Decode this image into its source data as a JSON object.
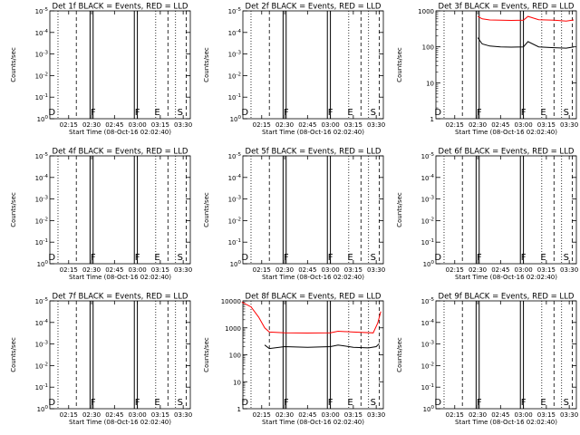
{
  "chart_data": [
    {
      "type": "line",
      "title": "Det 1f BLACK = Events, RED = LLD",
      "xlabel": "Start Time (08-Oct-16 02:02:40)",
      "ylabel": "Counts/sec",
      "x_ticks": [
        "02:15",
        "02:30",
        "02:45",
        "03:00",
        "03:15",
        "03:30"
      ],
      "y_scale": "log",
      "y_ticks": [
        "10^0",
        "10^-1",
        "10^-2",
        "10^-3",
        "10^-4",
        "10^-5"
      ],
      "series": [],
      "markers": [
        "D",
        "F",
        "F",
        "E",
        "S"
      ]
    },
    {
      "type": "line",
      "title": "Det 2f BLACK = Events, RED = LLD",
      "xlabel": "Start Time (08-Oct-16 02:02:40)",
      "ylabel": "Counts/sec",
      "x_ticks": [
        "02:15",
        "02:30",
        "02:45",
        "03:00",
        "03:15",
        "03:30"
      ],
      "y_scale": "log",
      "y_ticks": [
        "10^0",
        "10^-1",
        "10^-2",
        "10^-3",
        "10^-4",
        "10^-5"
      ],
      "series": [],
      "markers": [
        "D",
        "F",
        "F",
        "E",
        "S"
      ]
    },
    {
      "type": "line",
      "title": "Det 3f BLACK = Events, RED = LLD",
      "xlabel": "Start Time (08-Oct-16 02:02:40)",
      "ylabel": "Counts/sec",
      "x_ticks": [
        "02:15",
        "02:30",
        "02:45",
        "03:00",
        "03:15",
        "03:30"
      ],
      "y_scale": "log",
      "ylim": [
        1,
        1000
      ],
      "y_ticks": [
        "1",
        "10",
        "100",
        "1000"
      ],
      "series": [
        {
          "color": "#000000",
          "x": [
            "02:30",
            "02:33",
            "02:38",
            "02:45",
            "02:52",
            "03:00",
            "03:03",
            "03:10",
            "03:20",
            "03:28",
            "03:33"
          ],
          "y": [
            180,
            120,
            105,
            100,
            98,
            100,
            140,
            100,
            95,
            92,
            100
          ]
        },
        {
          "color": "#ff0000",
          "x": [
            "02:30",
            "02:33",
            "02:38",
            "02:45",
            "02:52",
            "03:00",
            "03:03",
            "03:10",
            "03:20",
            "03:28",
            "03:33"
          ],
          "y": [
            700,
            600,
            560,
            550,
            545,
            550,
            700,
            570,
            550,
            520,
            560
          ]
        }
      ],
      "markers": [
        "D",
        "F",
        "F",
        "E",
        "S"
      ]
    },
    {
      "type": "line",
      "title": "Det 4f BLACK = Events, RED = LLD",
      "xlabel": "Start Time (08-Oct-16 02:02:40)",
      "ylabel": "Counts/sec",
      "x_ticks": [
        "02:15",
        "02:30",
        "02:45",
        "03:00",
        "03:15",
        "03:30"
      ],
      "y_scale": "log",
      "y_ticks": [
        "10^0",
        "10^-1",
        "10^-2",
        "10^-3",
        "10^-4",
        "10^-5"
      ],
      "series": [],
      "markers": [
        "D",
        "F",
        "F",
        "E",
        "S"
      ]
    },
    {
      "type": "line",
      "title": "Det 5f BLACK = Events, RED = LLD",
      "xlabel": "Start Time (08-Oct-16 02:02:40)",
      "ylabel": "Counts/sec",
      "x_ticks": [
        "02:15",
        "02:30",
        "02:45",
        "03:00",
        "03:15",
        "03:30"
      ],
      "y_scale": "log",
      "y_ticks": [
        "10^0",
        "10^-1",
        "10^-2",
        "10^-3",
        "10^-4",
        "10^-5"
      ],
      "series": [],
      "markers": [
        "D",
        "F",
        "F",
        "E",
        "S"
      ]
    },
    {
      "type": "line",
      "title": "Det 6f BLACK = Events, RED = LLD",
      "xlabel": "Start Time (08-Oct-16 02:02:40)",
      "ylabel": "Counts/sec",
      "x_ticks": [
        "02:15",
        "02:30",
        "02:45",
        "03:00",
        "03:15",
        "03:30"
      ],
      "y_scale": "log",
      "y_ticks": [
        "10^0",
        "10^-1",
        "10^-2",
        "10^-3",
        "10^-4",
        "10^-5"
      ],
      "series": [],
      "markers": [
        "D",
        "F",
        "F",
        "E",
        "S"
      ]
    },
    {
      "type": "line",
      "title": "Det 7f BLACK = Events, RED = LLD",
      "xlabel": "Start Time (08-Oct-16 02:02:40)",
      "ylabel": "Counts/sec",
      "x_ticks": [
        "02:15",
        "02:30",
        "02:45",
        "03:00",
        "03:15",
        "03:30"
      ],
      "y_scale": "log",
      "y_ticks": [
        "10^0",
        "10^-1",
        "10^-2",
        "10^-3",
        "10^-4",
        "10^-5"
      ],
      "series": [],
      "markers": [
        "D",
        "F",
        "F",
        "E",
        "S"
      ]
    },
    {
      "type": "line",
      "title": "Det 8f BLACK = Events, RED = LLD",
      "xlabel": "Start Time (08-Oct-16 02:02:40)",
      "ylabel": "Counts/sec",
      "x_ticks": [
        "02:15",
        "02:30",
        "02:45",
        "03:00",
        "03:15",
        "03:30"
      ],
      "y_scale": "log",
      "ylim": [
        1,
        10000
      ],
      "y_ticks": [
        "1",
        "10",
        "100",
        "1000",
        "10000"
      ],
      "series": [
        {
          "color": "#000000",
          "x": [
            "02:17",
            "02:20",
            "02:30",
            "02:45",
            "03:00",
            "03:05",
            "03:15",
            "03:25",
            "03:30",
            "03:32"
          ],
          "y": [
            230,
            170,
            200,
            190,
            200,
            230,
            190,
            180,
            200,
            260
          ]
        },
        {
          "color": "#ff0000",
          "x": [
            "02:02",
            "02:08",
            "02:13",
            "02:17",
            "02:20",
            "02:30",
            "02:45",
            "03:00",
            "03:05",
            "03:15",
            "03:28",
            "03:31",
            "03:33"
          ],
          "y": [
            9000,
            6000,
            2500,
            1000,
            700,
            650,
            640,
            650,
            750,
            700,
            650,
            1500,
            4000
          ]
        }
      ],
      "markers": [
        "D",
        "F",
        "F",
        "E",
        "S"
      ]
    },
    {
      "type": "line",
      "title": "Det 9f BLACK = Events, RED = LLD",
      "xlabel": "Start Time (08-Oct-16 02:02:40)",
      "ylabel": "Counts/sec",
      "x_ticks": [
        "02:15",
        "02:30",
        "02:45",
        "03:00",
        "03:15",
        "03:30"
      ],
      "y_scale": "log",
      "y_ticks": [
        "10^0",
        "10^-1",
        "10^-2",
        "10^-3",
        "10^-4",
        "10^-5"
      ],
      "series": [],
      "markers": [
        "D",
        "F",
        "F",
        "E",
        "S"
      ]
    }
  ]
}
